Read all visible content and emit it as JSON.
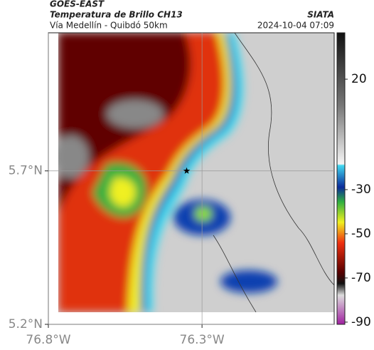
{
  "header": {
    "source": "GOES-EAST",
    "title": "Temperatura de Brillo CH13",
    "subtitle": "Vía Medellín - Quibdó 50km",
    "agency": "SIATA",
    "datetime": "2024-10-04 07:09"
  },
  "map": {
    "lonlim": [
      -76.8,
      -75.87
    ],
    "latlim": [
      5.2,
      6.15
    ],
    "lonticks": [
      {
        "value": -76.8,
        "label": "76.8°W"
      },
      {
        "value": -76.3,
        "label": "76.3°W"
      }
    ],
    "latticks": [
      {
        "value": 5.7,
        "label": "5.7°N"
      },
      {
        "value": 5.2,
        "label": "5.2°N"
      }
    ],
    "marker": {
      "lon": -76.35,
      "lat": 5.7
    }
  },
  "colorbar": {
    "clim": [
      -91,
      41
    ],
    "ticks": [
      20,
      -30,
      -50,
      -70,
      -90
    ]
  }
}
